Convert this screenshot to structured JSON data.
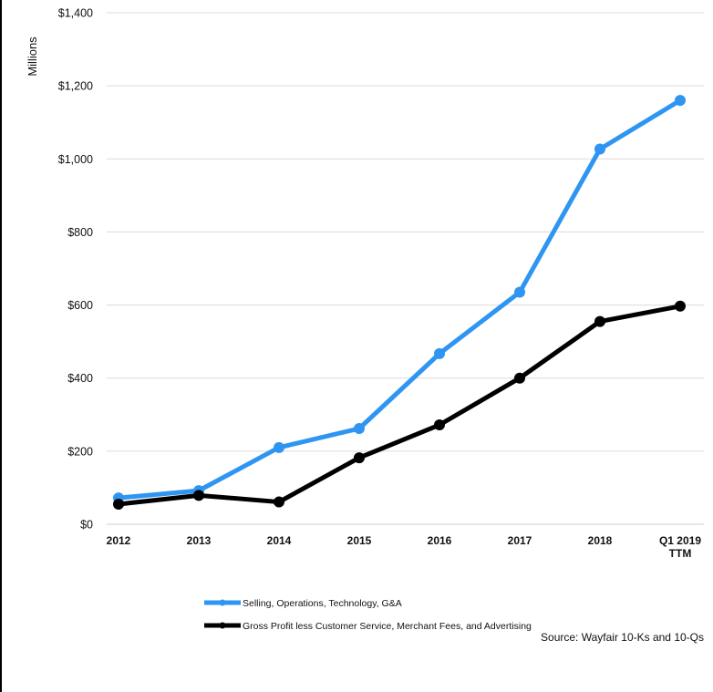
{
  "chart_data": {
    "type": "line",
    "title": "",
    "xlabel": "",
    "ylabel": "Millions",
    "ylim": [
      0,
      1400
    ],
    "yticks": [
      0,
      200,
      400,
      600,
      800,
      1000,
      1200,
      1400
    ],
    "ytick_labels": [
      "$0",
      "$200",
      "$400",
      "$600",
      "$800",
      "$1,000",
      "$1,200",
      "$1,400"
    ],
    "categories": [
      "2012",
      "2013",
      "2014",
      "2015",
      "2016",
      "2017",
      "2018",
      "Q1 2019\nTTM"
    ],
    "series": [
      {
        "name": "Selling, Operations, Technology, G&A",
        "color": "#2e95f2",
        "values": [
          72,
          92,
          210,
          262,
          467,
          635,
          1027,
          1160
        ]
      },
      {
        "name": "Gross Profit less Customer Service, Merchant Fees, and Advertising",
        "color": "#000000",
        "values": [
          55,
          79,
          61,
          182,
          272,
          400,
          555,
          597
        ]
      }
    ],
    "grid": true,
    "legend_position": "bottom-center"
  },
  "source_note": "Source: Wayfair 10-Ks and 10-Qs"
}
